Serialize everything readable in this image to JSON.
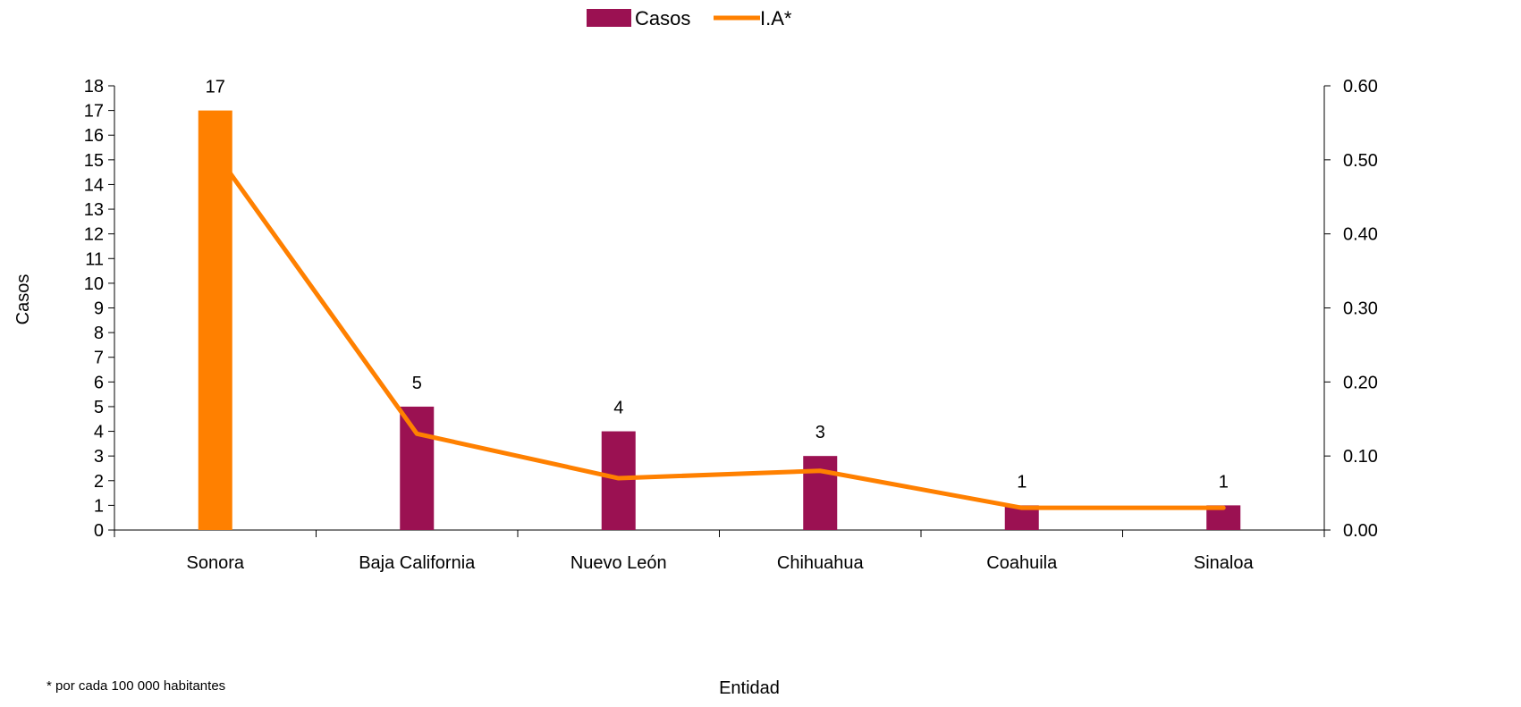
{
  "chart_data": {
    "type": "bar",
    "categories": [
      "Sonora",
      "Baja California",
      "Nuevo León",
      "Chihuahua",
      "Coahuila",
      "Sinaloa"
    ],
    "series": [
      {
        "name": "Casos",
        "kind": "bar",
        "axis": "left",
        "values": [
          17,
          5,
          4,
          3,
          1,
          1
        ],
        "data_labels": [
          "17",
          "5",
          "4",
          "3",
          "1",
          "1"
        ],
        "color": "#9b1152",
        "highlight_color": "#ff8000",
        "highlight_index": 0
      },
      {
        "name": "I.A*",
        "kind": "line",
        "axis": "right",
        "values": [
          0.51,
          0.13,
          0.07,
          0.08,
          0.03,
          0.03
        ],
        "color": "#ff8000"
      }
    ],
    "xlabel": "Entidad",
    "ylabel": "Casos",
    "ylim": [
      0,
      18
    ],
    "yticks": [
      "0",
      "1",
      "2",
      "3",
      "4",
      "5",
      "6",
      "7",
      "8",
      "9",
      "10",
      "11",
      "12",
      "13",
      "14",
      "15",
      "16",
      "17",
      "18"
    ],
    "y2lim": [
      0,
      0.6
    ],
    "y2ticks": [
      "0.00",
      "0.10",
      "0.20",
      "0.30",
      "0.40",
      "0.50",
      "0.60"
    ],
    "legend_position": "top-center",
    "grid": false,
    "footnote": "* por cada 100 000 habitantes"
  }
}
